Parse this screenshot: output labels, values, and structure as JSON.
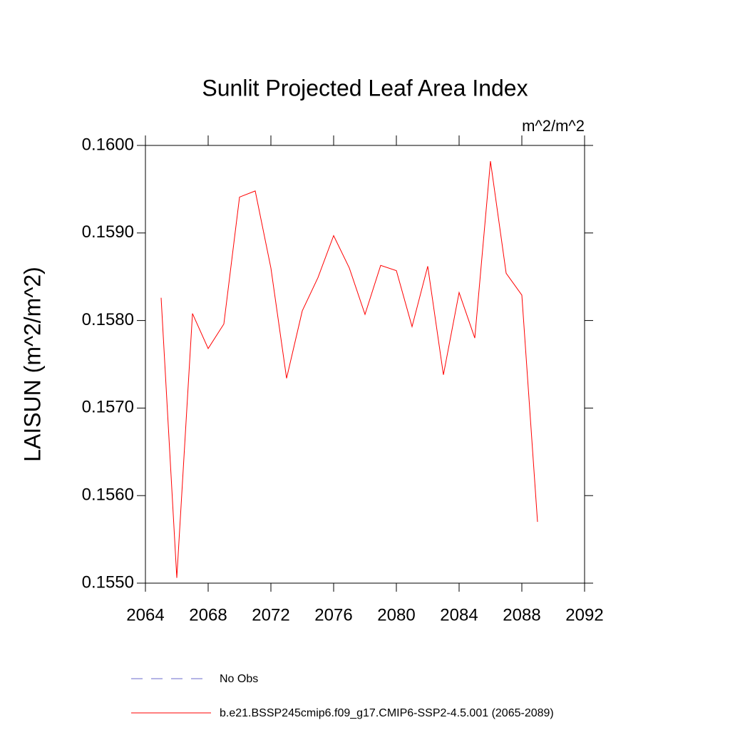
{
  "chart_data": {
    "type": "line",
    "title": "Sunlit Projected Leaf Area Index",
    "units": "m^2/m^2",
    "y_label": "LAISUN  (m^2/m^2)",
    "x": [
      2065,
      2066,
      2067,
      2068,
      2069,
      2070,
      2071,
      2072,
      2073,
      2074,
      2075,
      2076,
      2077,
      2078,
      2079,
      2080,
      2081,
      2082,
      2083,
      2084,
      2085,
      2086,
      2087,
      2088,
      2089
    ],
    "series": [
      {
        "name": "b.e21.BSSP245cmip6.f09_g17.CMIP6-SSP2-4.5.001 (2065-2089)",
        "color": "#ff0000",
        "values": [
          0.15826,
          0.15506,
          0.15808,
          0.15768,
          0.15796,
          0.15941,
          0.15948,
          0.1586,
          0.15734,
          0.15811,
          0.15849,
          0.15897,
          0.1586,
          0.15807,
          0.15863,
          0.15857,
          0.15793,
          0.15862,
          0.15738,
          0.15832,
          0.1578,
          0.15982,
          0.15854,
          0.15829,
          0.1557
        ]
      }
    ],
    "reference": {
      "name": "No Obs",
      "color": "#6a6acd",
      "dashed": true
    },
    "xlim": [
      2064,
      2092
    ],
    "xticks": [
      2064,
      2068,
      2072,
      2076,
      2080,
      2084,
      2088,
      2092
    ],
    "ylim": [
      0.155,
      0.16
    ],
    "yticks": [
      {
        "value": 0.155,
        "label": "0.1550"
      },
      {
        "value": 0.156,
        "label": "0.1560"
      },
      {
        "value": 0.157,
        "label": "0.1570"
      },
      {
        "value": 0.158,
        "label": "0.1580"
      },
      {
        "value": 0.159,
        "label": "0.1590"
      },
      {
        "value": 0.16,
        "label": "0.1600"
      }
    ],
    "grid": false
  }
}
